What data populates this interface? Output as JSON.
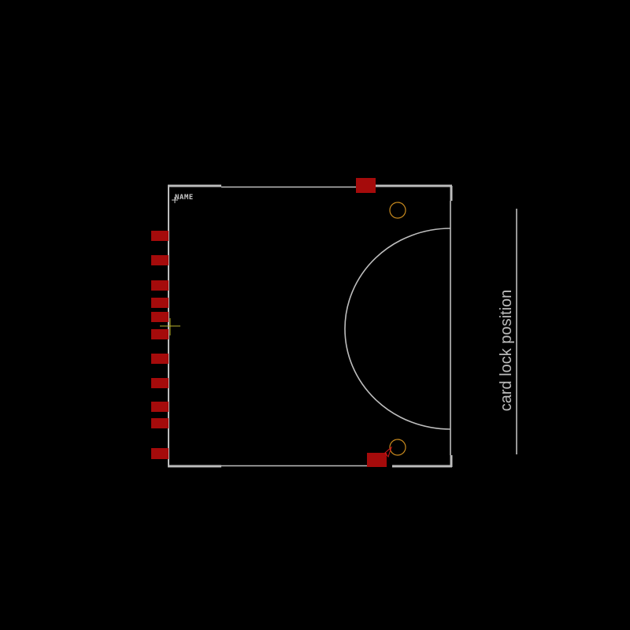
{
  "footprint": {
    "name_label": "NAME",
    "side_label": "card lock position",
    "pad_count_left": 11,
    "pad_count_top": 1,
    "pad_count_bottom": 1
  },
  "colors": {
    "background": "#000000",
    "outline": "#bdbdbd",
    "pad": "#a50b0b",
    "hole": "#c88a1e",
    "origin_marker": "#b7b22e",
    "silk_text": "#c8c8c8",
    "arrow": "#d11a1a"
  }
}
